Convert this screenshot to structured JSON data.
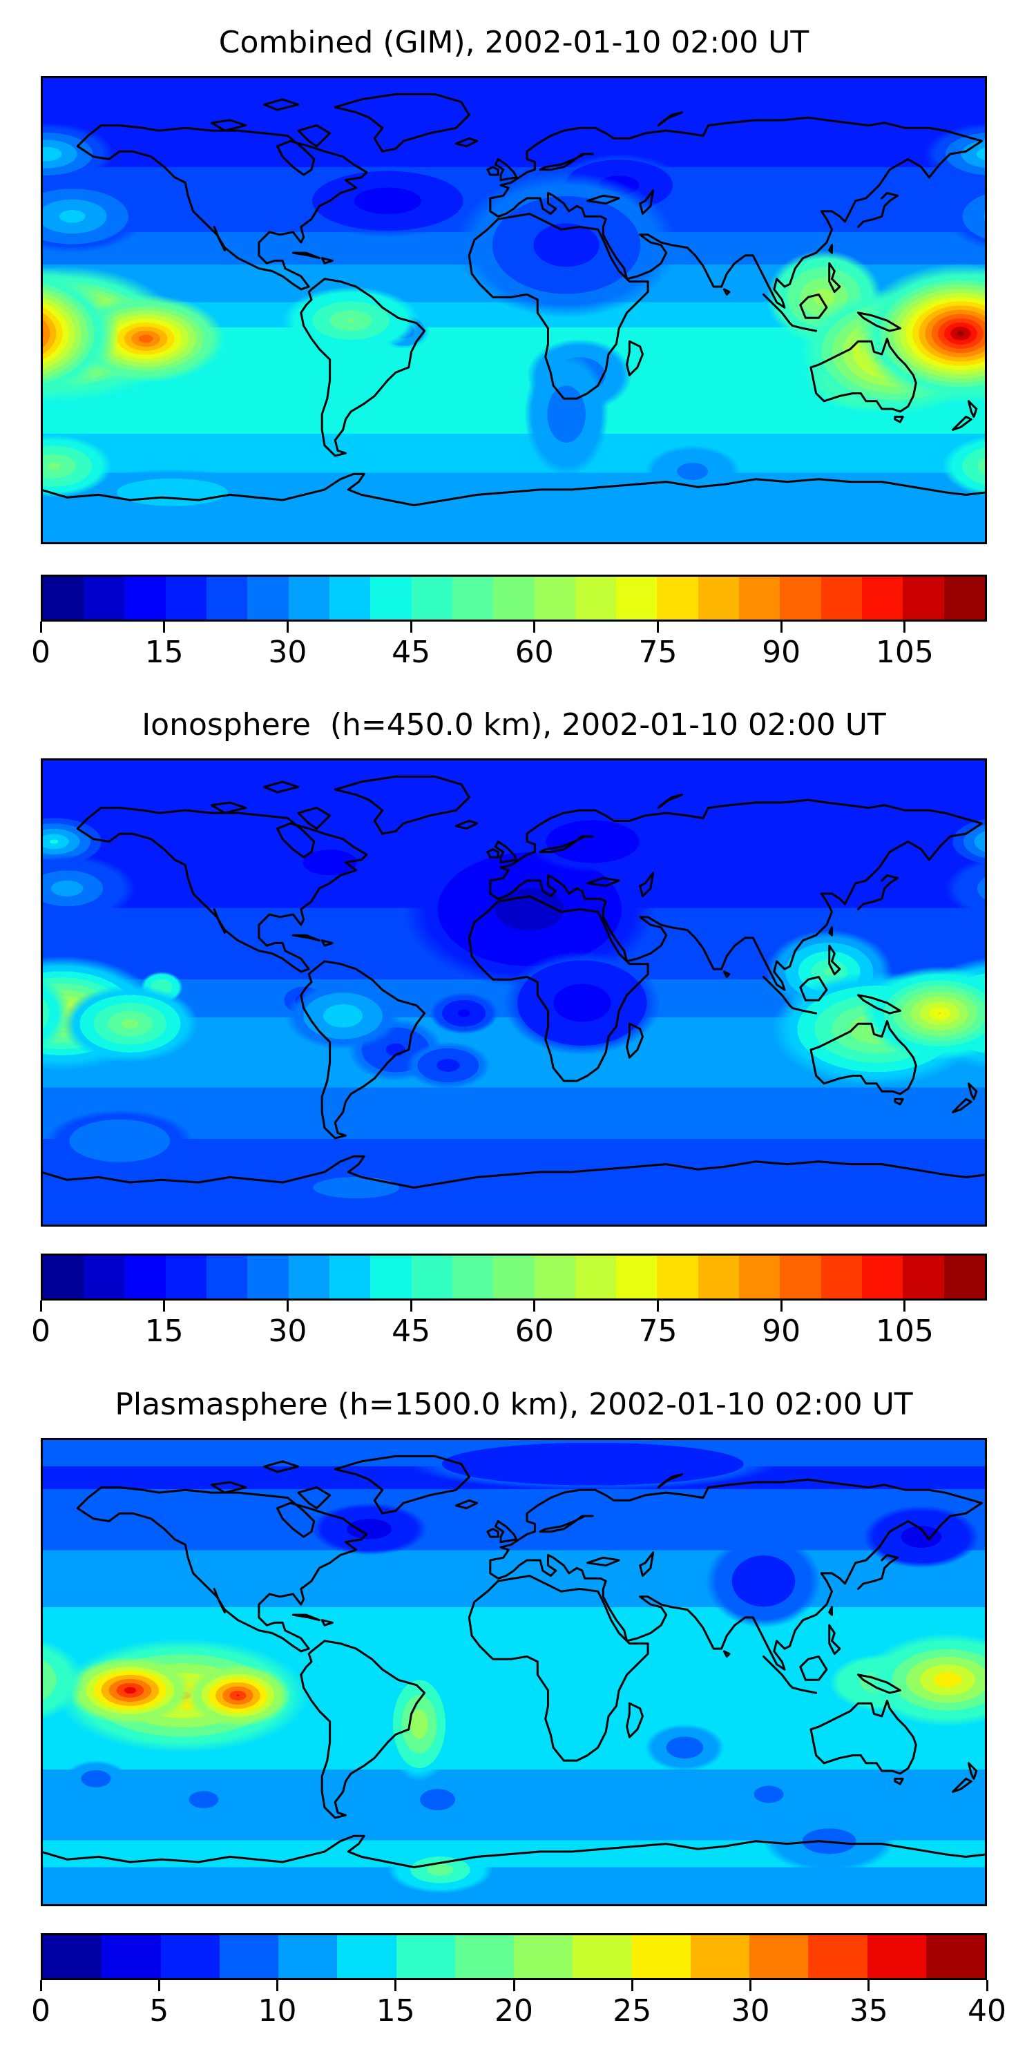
{
  "chart_data": {
    "type": "heatmap",
    "subtype": "filled-contour world maps (equirectangular, lon -180..180, lat -90..90)",
    "colormap": "jet",
    "grid": false,
    "panels": [
      {
        "title": "Combined (GIM), 2002-01-10 02:00 UT",
        "colorbar": {
          "vmin": 0,
          "vmax": 115,
          "level_step": 5,
          "ticks": [
            0,
            15,
            30,
            45,
            60,
            75,
            90,
            105
          ]
        },
        "lat_profile": [
          [
            90,
            17
          ],
          [
            70,
            18
          ],
          [
            55,
            20
          ],
          [
            45,
            21
          ],
          [
            30,
            25
          ],
          [
            15,
            31
          ],
          [
            0,
            36
          ],
          [
            -10,
            42
          ],
          [
            -25,
            44
          ],
          [
            -40,
            43
          ],
          [
            -55,
            37
          ],
          [
            -70,
            33
          ],
          [
            -80,
            35
          ],
          [
            -90,
            32
          ]
        ],
        "features": [
          {
            "name": "north-atlantic-low",
            "lon": -48,
            "lat": 42,
            "rx": 35,
            "ry": 14,
            "peak": 11,
            "edge": 20
          },
          {
            "name": "europe-low",
            "lon": 40,
            "lat": 48,
            "rx": 25,
            "ry": 12,
            "peak": 12,
            "edge": 20
          },
          {
            "name": "africa-night-low",
            "lon": 20,
            "lat": 25,
            "rx": 42,
            "ry": 28,
            "peak": 16,
            "edge": 27
          },
          {
            "name": "south-africa-low",
            "lon": 25,
            "lat": -25,
            "rx": 20,
            "ry": 14,
            "peak": 24,
            "edge": 34
          },
          {
            "name": "south-atlantic-low",
            "lon": 20,
            "lat": -40,
            "rx": 16,
            "ry": 24,
            "peak": 25,
            "edge": 34
          },
          {
            "name": "south-indian-low",
            "lon": 68,
            "lat": -62,
            "rx": 18,
            "ry": 10,
            "peak": 28,
            "edge": 33
          },
          {
            "name": "brazil-low-spot",
            "lon": -42,
            "lat": -8,
            "rx": 10,
            "ry": 7,
            "peak": 25,
            "edge": 35
          },
          {
            "name": "bering-patch",
            "lon": -178,
            "lat": 60,
            "rx": 26,
            "ry": 12,
            "peak": 40,
            "edge": 22
          },
          {
            "name": "north-pacific-patch",
            "lon": -168,
            "lat": 36,
            "rx": 28,
            "ry": 14,
            "peak": 38,
            "edge": 24
          },
          {
            "name": "antarctic-patch",
            "lon": -130,
            "lat": -70,
            "rx": 36,
            "ry": 9,
            "peak": 40,
            "edge": 33
          },
          {
            "name": "southwest-pacific-patch",
            "lon": -175,
            "lat": -60,
            "rx": 22,
            "ry": 12,
            "peak": 57,
            "edge": 42
          },
          {
            "name": "south-america-warm",
            "lon": -62,
            "lat": -4,
            "rx": 26,
            "ry": 13,
            "peak": 56,
            "edge": 40
          },
          {
            "name": "se-asia-warm",
            "lon": 118,
            "lat": 5,
            "rx": 22,
            "ry": 18,
            "peak": 64,
            "edge": 46
          },
          {
            "name": "australia-warm",
            "lon": 133,
            "lat": -25,
            "rx": 22,
            "ry": 14,
            "peak": 72,
            "edge": 46
          },
          {
            "name": "oceania-ridge",
            "lon": 145,
            "lat": -16,
            "rx": 36,
            "ry": 24,
            "peak": 85,
            "edge": 48
          },
          {
            "name": "equatorial-anomaly-central-pacific",
            "lon": -171,
            "lat": -9,
            "rx": 45,
            "ry": 26,
            "peak": 112,
            "edge": 45
          },
          {
            "name": "equatorial-anomaly-central-pacific-2",
            "lon": -140,
            "lat": -11,
            "rx": 30,
            "ry": 17,
            "peak": 95,
            "edge": 50
          },
          {
            "name": "equatorial-anomaly-west-pacific",
            "lon": 170,
            "lat": -9,
            "rx": 40,
            "ry": 27,
            "peak": 113,
            "edge": 45
          }
        ]
      },
      {
        "title": "Ionosphere  (h=450.0 km), 2002-01-10 02:00 UT",
        "colorbar": {
          "vmin": 0,
          "vmax": 115,
          "level_step": 5,
          "ticks": [
            0,
            15,
            30,
            45,
            60,
            75,
            90,
            105
          ]
        },
        "lat_profile": [
          [
            90,
            17
          ],
          [
            70,
            17
          ],
          [
            55,
            18
          ],
          [
            40,
            19
          ],
          [
            25,
            21
          ],
          [
            10,
            24
          ],
          [
            0,
            26
          ],
          [
            -12,
            31
          ],
          [
            -28,
            32
          ],
          [
            -45,
            28
          ],
          [
            -60,
            24
          ],
          [
            -75,
            22
          ],
          [
            -90,
            21
          ]
        ],
        "features": [
          {
            "name": "europe-africa-low",
            "lon": 6,
            "lat": 32,
            "rx": 48,
            "ry": 30,
            "peak": 7,
            "edge": 16
          },
          {
            "name": "central-africa-low",
            "lon": 26,
            "lat": -4,
            "rx": 30,
            "ry": 20,
            "peak": 11,
            "edge": 20
          },
          {
            "name": "scandinavia-low",
            "lon": 30,
            "lat": 58,
            "rx": 26,
            "ry": 12,
            "peak": 10,
            "edge": 16
          },
          {
            "name": "canada-low",
            "lon": -70,
            "lat": 50,
            "rx": 25,
            "ry": 12,
            "peak": 12,
            "edge": 18
          },
          {
            "name": "brazil-low",
            "lon": -45,
            "lat": -22,
            "rx": 18,
            "ry": 12,
            "peak": 18,
            "edge": 26
          },
          {
            "name": "ecuador-low-spot",
            "lon": -80,
            "lat": -3,
            "rx": 10,
            "ry": 7,
            "peak": 16,
            "edge": 26
          },
          {
            "name": "atlantic-low-spot",
            "lon": -19,
            "lat": -8,
            "rx": 13,
            "ry": 8,
            "peak": 13,
            "edge": 22
          },
          {
            "name": "south-atlantic-low-spot",
            "lon": -25,
            "lat": -28,
            "rx": 16,
            "ry": 9,
            "peak": 17,
            "edge": 26
          },
          {
            "name": "bering-patch",
            "lon": -175,
            "lat": 58,
            "rx": 24,
            "ry": 12,
            "peak": 42,
            "edge": 18
          },
          {
            "name": "north-pacific-patch",
            "lon": -170,
            "lat": 40,
            "rx": 26,
            "ry": 13,
            "peak": 34,
            "edge": 20
          },
          {
            "name": "south-pacific-patch",
            "lon": -150,
            "lat": -57,
            "rx": 28,
            "ry": 12,
            "peak": 30,
            "edge": 24
          },
          {
            "name": "antarctic-patch",
            "lon": -60,
            "lat": -75,
            "rx": 40,
            "ry": 10,
            "peak": 28,
            "edge": 22
          },
          {
            "name": "south-america-patch",
            "lon": -65,
            "lat": -9,
            "rx": 22,
            "ry": 13,
            "peak": 40,
            "edge": 28
          },
          {
            "name": "pacific-green-spot",
            "lon": -134,
            "lat": 2,
            "rx": 8,
            "ry": 6,
            "peak": 50,
            "edge": 42
          },
          {
            "name": "se-asia-warm",
            "lon": 120,
            "lat": 8,
            "rx": 24,
            "ry": 16,
            "peak": 52,
            "edge": 32
          },
          {
            "name": "oceania-warm",
            "lon": 138,
            "lat": -14,
            "rx": 40,
            "ry": 22,
            "peak": 63,
            "edge": 38
          },
          {
            "name": "central-pacific-warm",
            "lon": -172,
            "lat": -8,
            "rx": 38,
            "ry": 22,
            "peak": 74,
            "edge": 36
          },
          {
            "name": "central-pacific-secondary",
            "lon": -146,
            "lat": -12,
            "rx": 26,
            "ry": 15,
            "peak": 58,
            "edge": 38
          },
          {
            "name": "west-pacific-core",
            "lon": 162,
            "lat": -8,
            "rx": 30,
            "ry": 18,
            "peak": 76,
            "edge": 40
          }
        ]
      },
      {
        "title": "Plasmasphere (h=1500.0 km), 2002-01-10 02:00 UT",
        "colorbar": {
          "vmin": 0,
          "vmax": 40,
          "level_step": 2.5,
          "ticks": [
            0,
            5,
            10,
            15,
            20,
            25,
            30,
            35,
            40
          ]
        },
        "lat_profile": [
          [
            90,
            8.8
          ],
          [
            75,
            7
          ],
          [
            60,
            8.6
          ],
          [
            45,
            10.2
          ],
          [
            30,
            12
          ],
          [
            15,
            13.5
          ],
          [
            0,
            14.4
          ],
          [
            -12,
            15
          ],
          [
            -25,
            14
          ],
          [
            -40,
            12.2
          ],
          [
            -55,
            11.6
          ],
          [
            -70,
            13
          ],
          [
            -82,
            11.8
          ],
          [
            -90,
            10
          ]
        ],
        "features": [
          {
            "name": "canada-low",
            "lon": -55,
            "lat": 55,
            "rx": 22,
            "ry": 10,
            "peak": 3.2,
            "edge": 7
          },
          {
            "name": "east-asia-low",
            "lon": 155,
            "lat": 52,
            "rx": 22,
            "ry": 12,
            "peak": 3.5,
            "edge": 7
          },
          {
            "name": "central-asia-low",
            "lon": 95,
            "lat": 35,
            "rx": 22,
            "ry": 18,
            "peak": 5.5,
            "edge": 8.5
          },
          {
            "name": "arctic-low-band",
            "lon": 30,
            "lat": 80,
            "rx": 70,
            "ry": 10,
            "peak": 5,
            "edge": 7.5
          },
          {
            "name": "indian-low-spot",
            "lon": 65,
            "lat": -29,
            "rx": 15,
            "ry": 9,
            "peak": 8,
            "edge": 11.5
          },
          {
            "name": "pacific-low-spot",
            "lon": -159,
            "lat": -41,
            "rx": 12,
            "ry": 7,
            "peak": 8,
            "edge": 11.5
          },
          {
            "name": "pacific-low-spot-2",
            "lon": -118,
            "lat": -49,
            "rx": 12,
            "ry": 7,
            "peak": 8,
            "edge": 11.5
          },
          {
            "name": "atlantic-low-spot",
            "lon": -29,
            "lat": -49,
            "rx": 13,
            "ry": 8,
            "peak": 7.5,
            "edge": 11.5
          },
          {
            "name": "south-indian-low-spot",
            "lon": 97,
            "lat": -47,
            "rx": 12,
            "ry": 7,
            "peak": 8,
            "edge": 11.5
          },
          {
            "name": "australian-bight-low",
            "lon": 120,
            "lat": -65,
            "rx": 25,
            "ry": 12,
            "peak": 8,
            "edge": 12
          },
          {
            "name": "antarctic-green-patch",
            "lon": -28,
            "lat": -76,
            "rx": 20,
            "ry": 9,
            "peak": 19.5,
            "edge": 13
          },
          {
            "name": "coral-sea-patch",
            "lon": 140,
            "lat": -4,
            "rx": 20,
            "ry": 11,
            "peak": 20,
            "edge": 15
          },
          {
            "name": "brazil-green",
            "lon": -36,
            "lat": -20,
            "rx": 13,
            "ry": 22,
            "peak": 22.5,
            "edge": 14.5
          },
          {
            "name": "plasma-warm-envelope",
            "lon": -126,
            "lat": -9,
            "rx": 48,
            "ry": 22,
            "peak": 28.5,
            "edge": 16
          },
          {
            "name": "plasma-core-west",
            "lon": -146,
            "lat": -7,
            "rx": 24,
            "ry": 13,
            "peak": 37,
            "edge": 20
          },
          {
            "name": "plasma-core-east",
            "lon": -105,
            "lat": -9,
            "rx": 20,
            "ry": 12,
            "peak": 35.5,
            "edge": 20
          },
          {
            "name": "west-pacific-yellow",
            "lon": 165,
            "lat": -3,
            "rx": 32,
            "ry": 18,
            "peak": 27.5,
            "edge": 15
          }
        ]
      }
    ]
  }
}
